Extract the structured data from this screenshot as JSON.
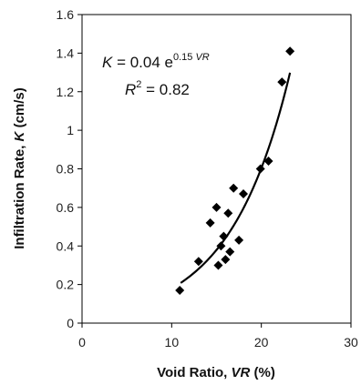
{
  "chart_data": {
    "type": "scatter",
    "xlim": [
      0,
      30
    ],
    "ylim": [
      0,
      1.6
    ],
    "x_ticks": [
      "0",
      "10",
      "20",
      "30"
    ],
    "y_ticks": [
      "0",
      "0.2",
      "0.4",
      "0.6",
      "0.8",
      "1",
      "1.2",
      "1.4",
      "1.6"
    ],
    "xlabel": {
      "prefix": "Void Ratio, ",
      "var": "VR",
      "suffix": " (%)"
    },
    "ylabel": {
      "prefix": "Infiltration Rate, ",
      "var": "K",
      "suffix": " (cm/s)"
    },
    "points": [
      {
        "x": 10.9,
        "y": 0.17
      },
      {
        "x": 13.0,
        "y": 0.32
      },
      {
        "x": 14.3,
        "y": 0.52
      },
      {
        "x": 15.0,
        "y": 0.6
      },
      {
        "x": 15.2,
        "y": 0.3
      },
      {
        "x": 15.5,
        "y": 0.4
      },
      {
        "x": 15.8,
        "y": 0.45
      },
      {
        "x": 16.0,
        "y": 0.33
      },
      {
        "x": 16.3,
        "y": 0.57
      },
      {
        "x": 16.5,
        "y": 0.37
      },
      {
        "x": 16.9,
        "y": 0.7
      },
      {
        "x": 17.5,
        "y": 0.43
      },
      {
        "x": 18.0,
        "y": 0.67
      },
      {
        "x": 19.9,
        "y": 0.8
      },
      {
        "x": 20.8,
        "y": 0.84
      },
      {
        "x": 22.3,
        "y": 1.25
      },
      {
        "x": 23.2,
        "y": 1.41
      }
    ],
    "trendline": {
      "type": "exponential",
      "a": 0.04,
      "b": 0.15,
      "x_range": [
        11,
        23.2
      ]
    },
    "equation": {
      "lhs": "K",
      "eq": " = 0.04 e",
      "exp_coef": "0.15 ",
      "exp_var": "VR",
      "r2_label": "R",
      "r2_sup": "2",
      "r2_value": " = 0.82"
    },
    "colors": {
      "marker": "#000000",
      "line": "#000000",
      "axis": "#000000"
    }
  }
}
